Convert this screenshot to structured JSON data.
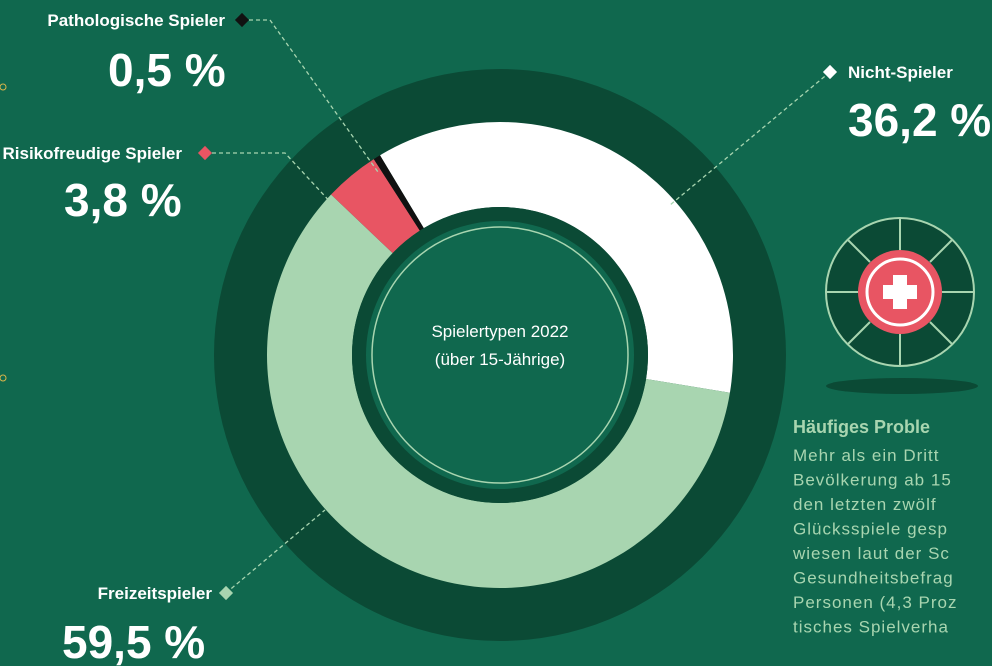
{
  "chart_data": {
    "type": "donut",
    "categories": [
      "Nicht-Spieler",
      "Freizeitspieler",
      "Risikofreudige Spieler",
      "Pathologische Spieler"
    ],
    "values": [
      36.2,
      59.5,
      3.8,
      0.5
    ],
    "value_labels": [
      "36,2 %",
      "59,5 %",
      "3,8 %",
      "0,5 %"
    ],
    "colors": [
      "#ffffff",
      "#a8d5b0",
      "#e85563",
      "#111111"
    ],
    "center_text": [
      "Spielertypen 2022",
      "(über 15-Jährige)"
    ]
  },
  "side_text": {
    "heading": "Häufiges Proble",
    "lines": [
      "Mehr als ein Dritt",
      "Bevölkerung ab 15",
      "den letzten zwölf",
      "Glücksspiele gesp",
      "wiesen laut der Sc",
      "Gesundheitsbefrag",
      "Personen (4,3 Proz",
      "tisches Spielverha"
    ]
  }
}
